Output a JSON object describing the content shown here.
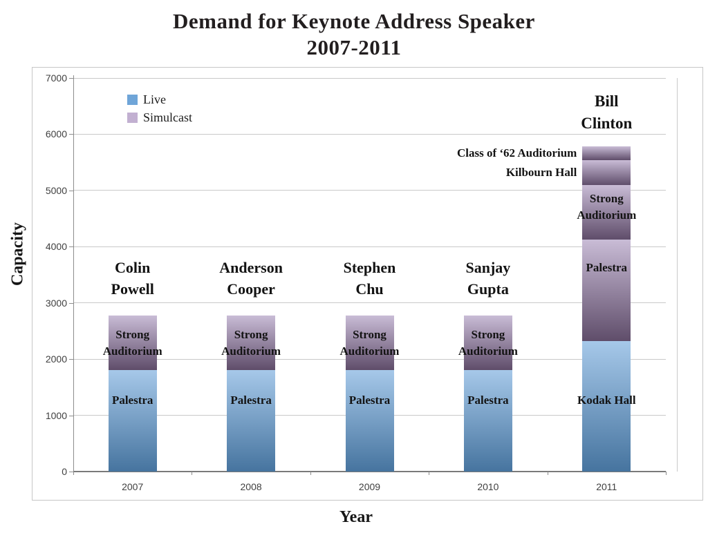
{
  "chart_data": {
    "type": "bar",
    "stacked": true,
    "title": "Demand for Keynote Address Speaker",
    "subtitle": "2007-2011",
    "xlabel": "Year",
    "ylabel": "Capacity",
    "ylim": [
      0,
      7000
    ],
    "ytick_step": 1000,
    "yticks": [
      "0",
      "1000",
      "2000",
      "3000",
      "4000",
      "5000",
      "6000",
      "7000"
    ],
    "categories": [
      "2007",
      "2008",
      "2009",
      "2010",
      "2011"
    ],
    "grid": "horizontal",
    "legend": {
      "position": "top-left-inside",
      "entries": [
        {
          "label": "Live",
          "swatch_color": "#6fa5d8"
        },
        {
          "label": "Simulcast",
          "swatch_color": "#c2b0d1"
        }
      ]
    },
    "colors": {
      "live_gradient_top": "#a6c8e9",
      "live_gradient_bottom": "#46749f",
      "simulcast_gradient_top": "#c9bcd6",
      "simulcast_gradient_bottom": "#5f4d6a"
    },
    "bars": [
      {
        "year": "2007",
        "speaker": "Colin Powell",
        "segments": [
          {
            "venue": "Palestra",
            "series": "Live",
            "value": 1800
          },
          {
            "venue": "Strong Auditorium",
            "series": "Simulcast",
            "value": 970
          }
        ]
      },
      {
        "year": "2008",
        "speaker": "Anderson Cooper",
        "segments": [
          {
            "venue": "Palestra",
            "series": "Live",
            "value": 1800
          },
          {
            "venue": "Strong Auditorium",
            "series": "Simulcast",
            "value": 970
          }
        ]
      },
      {
        "year": "2009",
        "speaker": "Stephen Chu",
        "segments": [
          {
            "venue": "Palestra",
            "series": "Live",
            "value": 1800
          },
          {
            "venue": "Strong Auditorium",
            "series": "Simulcast",
            "value": 970
          }
        ]
      },
      {
        "year": "2010",
        "speaker": "Sanjay Gupta",
        "segments": [
          {
            "venue": "Palestra",
            "series": "Live",
            "value": 1800
          },
          {
            "venue": "Strong Auditorium",
            "series": "Simulcast",
            "value": 970
          }
        ]
      },
      {
        "year": "2011",
        "speaker": "Bill Clinton",
        "segments": [
          {
            "venue": "Kodak Hall",
            "series": "Live",
            "value": 2326
          },
          {
            "venue": "Palestra",
            "series": "Simulcast",
            "value": 1800
          },
          {
            "venue": "Strong Auditorium",
            "series": "Simulcast",
            "value": 970
          },
          {
            "venue": "Kilbourn Hall",
            "series": "Simulcast",
            "value": 444
          },
          {
            "venue": "Class of ‘62 Auditorium",
            "series": "Simulcast",
            "value": 250
          }
        ]
      }
    ]
  }
}
